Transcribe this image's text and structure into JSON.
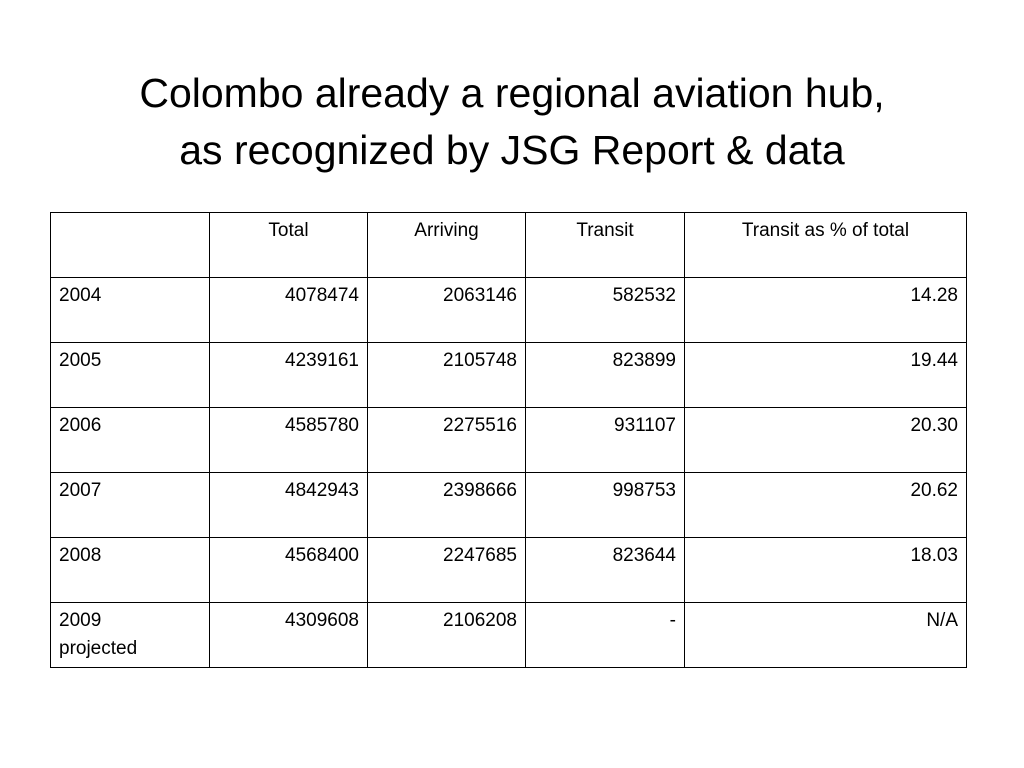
{
  "slide": {
    "title_line1": "Colombo already a regional aviation hub,",
    "title_line2": "as recognized by JSG Report & data"
  },
  "table": {
    "headers": [
      "",
      "Total",
      "Arriving",
      "Transit",
      "Transit as % of total"
    ],
    "rows": [
      {
        "year": "2004",
        "total": "4078474",
        "arriving": "2063146",
        "transit": "582532",
        "pct": "14.28"
      },
      {
        "year": "2005",
        "total": "4239161",
        "arriving": "2105748",
        "transit": "823899",
        "pct": "19.44"
      },
      {
        "year": "2006",
        "total": "4585780",
        "arriving": "2275516",
        "transit": "931107",
        "pct": "20.30"
      },
      {
        "year": "2007",
        "total": "4842943",
        "arriving": "2398666",
        "transit": "998753",
        "pct": "20.62"
      },
      {
        "year": "2008",
        "total": "4568400",
        "arriving": "2247685",
        "transit": "823644",
        "pct": "18.03"
      },
      {
        "year": "2009",
        "year_note": "projected",
        "total": "4309608",
        "arriving": "2106208",
        "transit": "-",
        "pct": "N/A"
      }
    ]
  }
}
